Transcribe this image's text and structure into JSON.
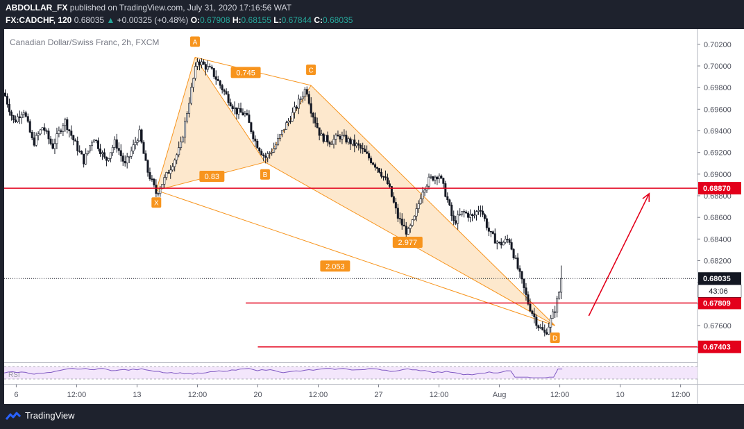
{
  "header": {
    "publisher": "ABDOLLAR_FX",
    "published_text": "published on TradingView.com, July 31, 2020 17:16:56 WAT",
    "symbol": "FX:CADCHF, 120",
    "last": "0.68035",
    "change": "+0.00325 (+0.48%)",
    "o_label": "O:",
    "o": "0.67908",
    "h_label": "H:",
    "h": "0.68155",
    "l_label": "L:",
    "l": "0.67844",
    "c_label": "C:",
    "c": "0.68035"
  },
  "chart_title": "Canadian Dollar/Swiss Franc, 2h, FXCM",
  "footer": {
    "brand": "TradingView"
  },
  "colors": {
    "background": "#ffffff",
    "frame": "#1e222d",
    "candle": "#131722",
    "pattern": "#f7941d",
    "pattern_fill": "#fde4c4",
    "level": "#e3001b",
    "rsi_band": "#f3e6fb",
    "rsi_line": "#7e57c2"
  },
  "chart_data": {
    "type": "candlestick",
    "instrument": "CADCHF",
    "timeframe": "2h",
    "x_ticks": [
      "6",
      "12:00",
      "13",
      "12:00",
      "20",
      "12:00",
      "27",
      "12:00",
      "Aug",
      "12:00",
      "10",
      "12:00"
    ],
    "y_ticks": [
      "0.70200",
      "0.70000",
      "0.69800",
      "0.69600",
      "0.69400",
      "0.69200",
      "0.69000",
      "0.68800",
      "0.68600",
      "0.68400",
      "0.68200",
      "0.68000",
      "0.67800",
      "0.67600",
      "0.67400"
    ],
    "ylim": [
      0.6726,
      0.7034
    ],
    "last_price": {
      "value": 0.68035,
      "label": "0.68035",
      "countdown": "43:06"
    },
    "price_path": [
      [
        0,
        0.6975
      ],
      [
        0.04,
        0.6948
      ],
      [
        0.08,
        0.696
      ],
      [
        0.12,
        0.6928
      ],
      [
        0.16,
        0.6944
      ],
      [
        0.2,
        0.6925
      ],
      [
        0.25,
        0.695
      ],
      [
        0.29,
        0.693
      ],
      [
        0.33,
        0.6912
      ],
      [
        0.37,
        0.6935
      ],
      [
        0.42,
        0.6912
      ],
      [
        0.46,
        0.693
      ],
      [
        0.5,
        0.6908
      ],
      [
        0.56,
        0.6938
      ],
      [
        0.59,
        0.6905
      ],
      [
        0.63,
        0.6882
      ],
      [
        0.67,
        0.6898
      ],
      [
        0.73,
        0.6925
      ],
      [
        0.78,
        0.6985
      ],
      [
        0.8,
        0.7005
      ],
      [
        0.86,
        0.6995
      ],
      [
        0.9,
        0.698
      ],
      [
        0.96,
        0.6958
      ],
      [
        1.0,
        0.6955
      ],
      [
        1.04,
        0.693
      ],
      [
        1.08,
        0.6915
      ],
      [
        1.12,
        0.6925
      ],
      [
        1.16,
        0.6943
      ],
      [
        1.2,
        0.6958
      ],
      [
        1.25,
        0.698
      ],
      [
        1.27,
        0.696
      ],
      [
        1.31,
        0.6935
      ],
      [
        1.35,
        0.693
      ],
      [
        1.39,
        0.6935
      ],
      [
        1.43,
        0.693
      ],
      [
        1.47,
        0.6925
      ],
      [
        1.51,
        0.6915
      ],
      [
        1.55,
        0.6905
      ],
      [
        1.59,
        0.689
      ],
      [
        1.63,
        0.686
      ],
      [
        1.67,
        0.6845
      ],
      [
        1.7,
        0.686
      ],
      [
        1.73,
        0.6885
      ],
      [
        1.76,
        0.6895
      ],
      [
        1.8,
        0.69
      ],
      [
        1.83,
        0.688
      ],
      [
        1.86,
        0.6855
      ],
      [
        1.9,
        0.6865
      ],
      [
        1.94,
        0.686
      ],
      [
        1.97,
        0.687
      ],
      [
        2.01,
        0.6845
      ],
      [
        2.05,
        0.6835
      ],
      [
        2.09,
        0.684
      ],
      [
        2.13,
        0.681
      ],
      [
        2.17,
        0.678
      ],
      [
        2.21,
        0.676
      ],
      [
        2.24,
        0.6752
      ],
      [
        2.28,
        0.6775
      ],
      [
        2.31,
        0.6803
      ]
    ],
    "pattern": {
      "points": [
        {
          "label": "X",
          "t": 0.63,
          "price": 0.6885
        },
        {
          "label": "A",
          "t": 0.79,
          "price": 0.7008
        },
        {
          "label": "B",
          "t": 1.08,
          "price": 0.6911
        },
        {
          "label": "C",
          "t": 1.27,
          "price": 0.6982
        },
        {
          "label": "D",
          "t": 2.28,
          "price": 0.676
        }
      ],
      "ratios": [
        {
          "text": "0.745",
          "t": 1.0,
          "price": 0.6994
        },
        {
          "text": "0.83",
          "t": 0.86,
          "price": 0.6898
        },
        {
          "text": "2.977",
          "t": 1.67,
          "price": 0.6837
        },
        {
          "text": "2.053",
          "t": 1.37,
          "price": 0.6815
        }
      ]
    },
    "levels": [
      {
        "value": 0.6887,
        "label": "0.68870",
        "t_start": 0
      },
      {
        "value": 0.67809,
        "label": "0.67809",
        "t_start": 1.0
      },
      {
        "value": 0.67403,
        "label": "0.67403",
        "t_start": 1.05
      }
    ],
    "arrow": {
      "t_start": 2.42,
      "price_start": 0.6769,
      "t_end": 2.67,
      "price_end": 0.6882
    },
    "rsi": {
      "label": "RSI",
      "upper": 70,
      "lower": 30
    },
    "xlim": [
      0,
      2.87
    ]
  }
}
